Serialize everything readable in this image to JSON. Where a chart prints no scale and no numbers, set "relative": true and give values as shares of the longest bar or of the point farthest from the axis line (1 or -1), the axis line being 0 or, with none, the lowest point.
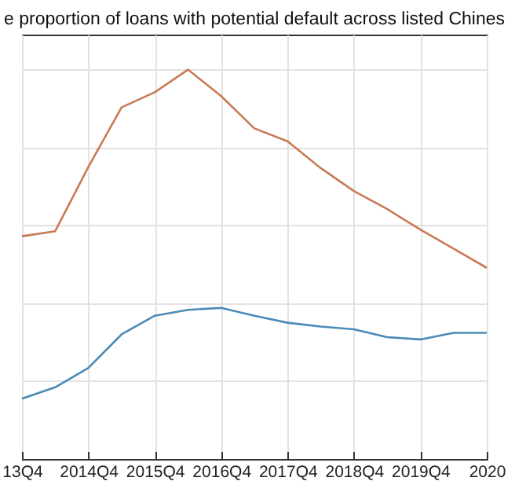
{
  "chart_data": {
    "type": "line",
    "title": "e proportion of loans with potential default across listed Chines",
    "relative": true,
    "grid": true,
    "categories": [
      "13Q4",
      null,
      "2014Q4",
      null,
      "2015Q4",
      null,
      "2016Q4",
      null,
      "2017Q4",
      null,
      "2018Q4",
      null,
      "2019Q4",
      null,
      "2020"
    ],
    "series": [
      {
        "color": "#c97a55",
        "values": [
          0.572,
          0.585,
          0.75,
          0.903,
          0.942,
          1,
          0.932,
          0.849,
          0.816,
          0.747,
          0.688,
          0.642,
          0.589,
          0.54,
          0.491
        ]
      },
      {
        "color": "#4a8ab8",
        "values": [
          0.155,
          0.184,
          0.234,
          0.32,
          0.368,
          0.383,
          0.388,
          0.368,
          0.35,
          0.34,
          0.333,
          0.313,
          0.307,
          0.324,
          0.324
        ]
      }
    ]
  }
}
